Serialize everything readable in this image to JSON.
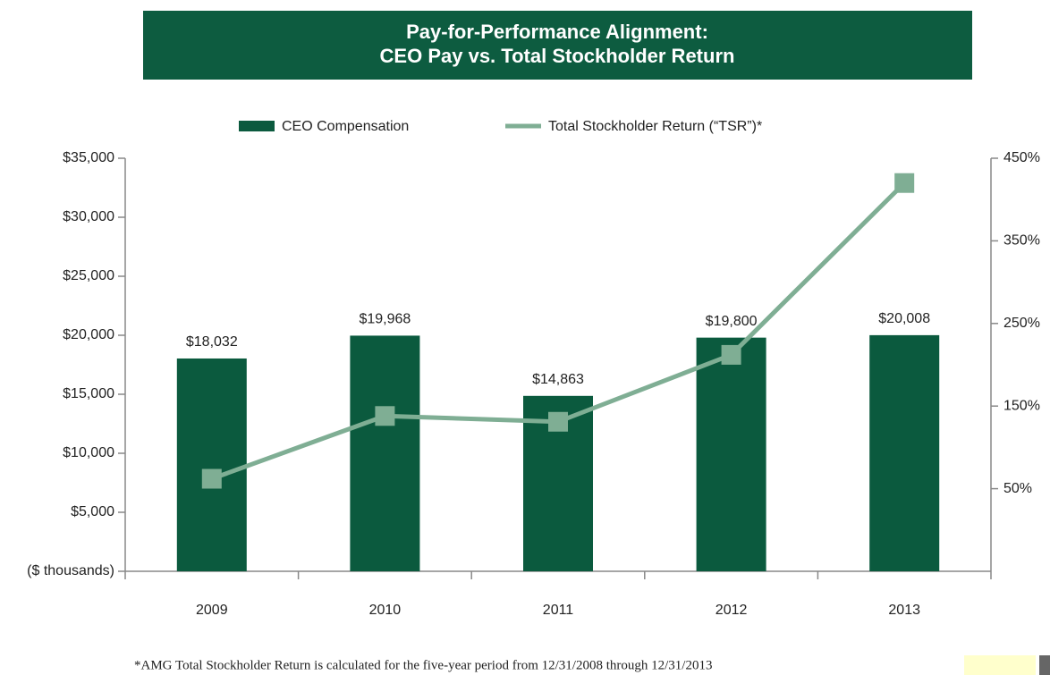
{
  "chart_data": {
    "type": "bar",
    "title_lines": [
      "Pay-for-Performance Alignment:",
      "CEO Pay vs. Total Stockholder Return"
    ],
    "categories": [
      "2009",
      "2010",
      "2011",
      "2012",
      "2013"
    ],
    "series": [
      {
        "name": "CEO Compensation",
        "type": "bar",
        "color": "#0b5a3e",
        "values": [
          18032,
          19968,
          14863,
          19800,
          20008
        ],
        "value_labels": [
          "$18,032",
          "$19,968",
          "$14,863",
          "$19,800",
          "$20,008"
        ]
      },
      {
        "name": "Total Stockholder Return (“TSR”)*",
        "type": "line",
        "axis": "y2",
        "color": "#7fae94",
        "values": [
          62,
          138,
          131,
          212,
          420
        ]
      }
    ],
    "ylim": [
      0,
      35000
    ],
    "yticks": [
      {
        "value": 0,
        "label": "($ thousands)"
      },
      {
        "value": 5000,
        "label": "$5,000"
      },
      {
        "value": 10000,
        "label": "$10,000"
      },
      {
        "value": 15000,
        "label": "$15,000"
      },
      {
        "value": 20000,
        "label": "$20,000"
      },
      {
        "value": 25000,
        "label": "$25,000"
      },
      {
        "value": 30000,
        "label": "$30,000"
      },
      {
        "value": 35000,
        "label": "$35,000"
      }
    ],
    "y2lim": [
      -50,
      450
    ],
    "y2ticks": [
      {
        "value": 50,
        "label": "50%"
      },
      {
        "value": 150,
        "label": "150%"
      },
      {
        "value": 250,
        "label": "250%"
      },
      {
        "value": 350,
        "label": "350%"
      },
      {
        "value": 450,
        "label": "450%"
      }
    ],
    "legend": "top",
    "footnote": "*AMG Total Stockholder Return is calculated for the five-year period from 12/31/2008 through 12/31/2013"
  }
}
